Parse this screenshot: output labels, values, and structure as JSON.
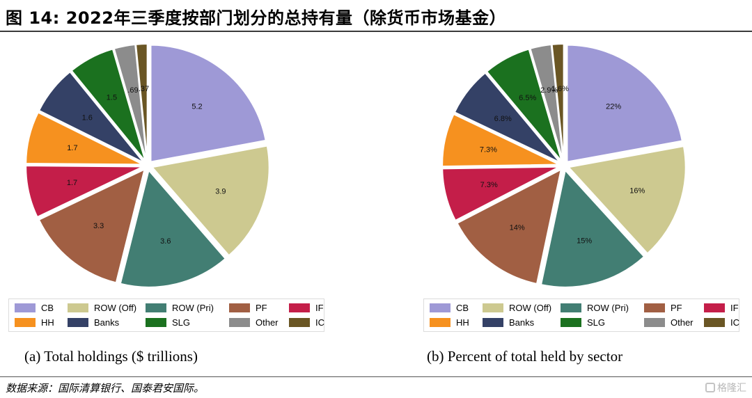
{
  "header": {
    "title": "图 14:  2022年三季度按部门划分的总持有量（除货币市场基金）"
  },
  "chart_data": [
    {
      "type": "pie",
      "caption": "(a)  Total holdings ($ trillions)",
      "categories": [
        "CB",
        "ROW (Off)",
        "ROW (Pri)",
        "PF",
        "IF",
        "HH",
        "Banks",
        "SLG",
        "Other",
        "IC"
      ],
      "values": [
        5.2,
        3.9,
        3.6,
        3.3,
        1.7,
        1.7,
        1.6,
        1.5,
        0.69,
        0.37
      ],
      "labels": [
        "5.2",
        "3.9",
        "3.6",
        "3.3",
        "1.7",
        "1.7",
        "1.6",
        "1.5",
        ".69",
        ".37"
      ],
      "colors": [
        "#9e99d6",
        "#cdc990",
        "#427e73",
        "#a15f43",
        "#c41e49",
        "#f6911f",
        "#344166",
        "#1b711f",
        "#8c8c8c",
        "#6a5624"
      ],
      "exploded": true,
      "legend": {
        "position": "bottom",
        "rows": [
          [
            "CB",
            "ROW (Off)",
            "ROW (Pri)",
            "PF",
            "IF"
          ],
          [
            "HH",
            "Banks",
            "SLG",
            "Other",
            "IC"
          ]
        ]
      }
    },
    {
      "type": "pie",
      "caption": "(b)  Percent of total held by sector",
      "categories": [
        "CB",
        "ROW (Off)",
        "ROW (Pri)",
        "PF",
        "IF",
        "HH",
        "Banks",
        "SLG",
        "Other",
        "IC"
      ],
      "values": [
        22,
        16,
        15,
        14,
        7.3,
        7.3,
        6.8,
        6.5,
        2.9,
        1.6
      ],
      "labels": [
        "22%",
        "16%",
        "15%",
        "14%",
        "7.3%",
        "7.3%",
        "6.8%",
        "6.5%",
        "2.9%",
        "1.6%"
      ],
      "colors": [
        "#9e99d6",
        "#cdc990",
        "#427e73",
        "#a15f43",
        "#c41e49",
        "#f6911f",
        "#344166",
        "#1b711f",
        "#8c8c8c",
        "#6a5624"
      ],
      "exploded": true,
      "legend": {
        "position": "bottom",
        "rows": [
          [
            "CB",
            "ROW (Off)",
            "ROW (Pri)",
            "PF",
            "IF"
          ],
          [
            "HH",
            "Banks",
            "SLG",
            "Other",
            "IC"
          ]
        ]
      }
    }
  ],
  "footer": {
    "source": "数据来源：国际清算银行、国泰君安国际。",
    "watermark": "格隆汇"
  }
}
